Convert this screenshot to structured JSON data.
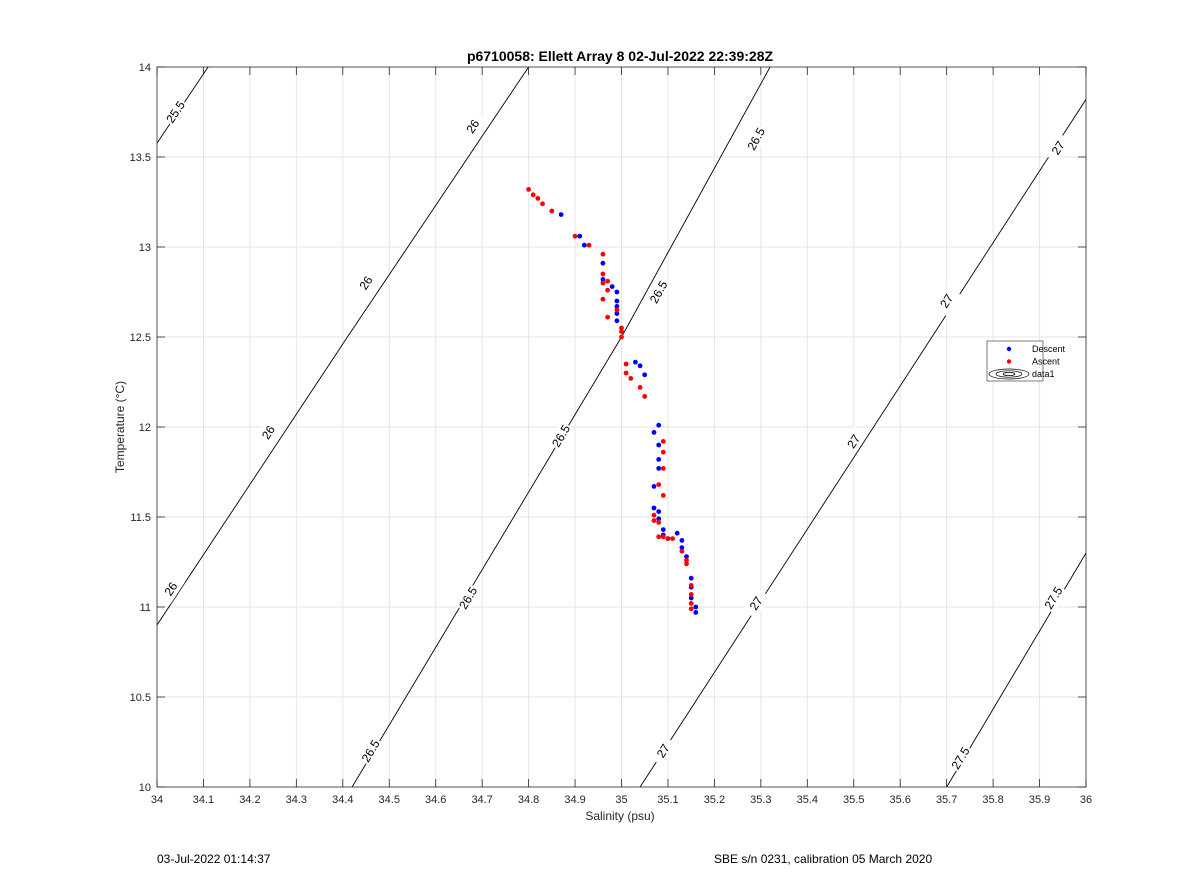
{
  "footer": {
    "timestamp": "03-Jul-2022 01:14:37",
    "sensor_info": "SBE s/n 0231, calibration 05 March 2020"
  },
  "chart_data": {
    "type": "scatter",
    "title": "p6710058: Ellett Array 8 02-Jul-2022 22:39:28Z",
    "xlabel": "Salinity (psu)",
    "ylabel": "Temperature (°C)",
    "xlim": [
      34,
      36
    ],
    "ylim": [
      10,
      14
    ],
    "xticks": [
      34,
      34.1,
      34.2,
      34.3,
      34.4,
      34.5,
      34.6,
      34.7,
      34.8,
      34.9,
      35,
      35.1,
      35.2,
      35.3,
      35.4,
      35.5,
      35.6,
      35.7,
      35.8,
      35.9,
      36
    ],
    "xtick_labels": [
      "34",
      "34.1",
      "34.2",
      "34.3",
      "34.4",
      "34.5",
      "34.6",
      "34.7",
      "34.8",
      "34.9",
      "35",
      "35.1",
      "35.2",
      "35.3",
      "35.4",
      "35.5",
      "35.6",
      "35.7",
      "35.8",
      "35.9",
      "36"
    ],
    "yticks": [
      10,
      10.5,
      11,
      11.5,
      12,
      12.5,
      13,
      13.5,
      14
    ],
    "ytick_labels": [
      "10",
      "10.5",
      "11",
      "11.5",
      "12",
      "12.5",
      "13",
      "13.5",
      "14"
    ],
    "grid": true,
    "legend_position": "right",
    "legend": [
      {
        "name": "Descent",
        "color": "#0000ff",
        "marker": "dot"
      },
      {
        "name": "Ascent",
        "color": "#ff0000",
        "marker": "dot"
      },
      {
        "name": "data1",
        "color": "#000000",
        "marker": "contour"
      }
    ],
    "contours": [
      {
        "level": "25.5",
        "points": [
          [
            33.98,
            13.5
          ],
          [
            34.11,
            14.0
          ]
        ],
        "labels": [
          {
            "x": 34.04,
            "y": 13.75
          }
        ]
      },
      {
        "level": "26",
        "points": [
          [
            34.0,
            10.9
          ],
          [
            34.41,
            12.5
          ],
          [
            34.8,
            14.0
          ]
        ],
        "labels": [
          {
            "x": 34.03,
            "y": 11.1
          },
          {
            "x": 34.24,
            "y": 11.97
          },
          {
            "x": 34.45,
            "y": 12.8
          },
          {
            "x": 34.68,
            "y": 13.67
          }
        ]
      },
      {
        "level": "26.5",
        "points": [
          [
            34.42,
            10.0
          ],
          [
            35.0,
            12.5
          ],
          [
            35.32,
            14.0
          ]
        ],
        "labels": [
          {
            "x": 34.46,
            "y": 10.2
          },
          {
            "x": 34.67,
            "y": 11.05
          },
          {
            "x": 34.87,
            "y": 11.95
          },
          {
            "x": 35.08,
            "y": 12.75
          },
          {
            "x": 35.29,
            "y": 13.6
          }
        ]
      },
      {
        "level": "27",
        "points": [
          [
            35.04,
            10.0
          ],
          [
            36.0,
            13.82
          ]
        ],
        "labels": [
          {
            "x": 35.09,
            "y": 10.2
          },
          {
            "x": 35.29,
            "y": 11.02
          },
          {
            "x": 35.5,
            "y": 11.92
          },
          {
            "x": 35.7,
            "y": 12.7
          },
          {
            "x": 35.94,
            "y": 13.55
          }
        ]
      },
      {
        "level": "27.5",
        "points": [
          [
            35.7,
            10.0
          ],
          [
            36.0,
            11.3
          ]
        ],
        "labels": [
          {
            "x": 35.73,
            "y": 10.16
          },
          {
            "x": 35.93,
            "y": 11.05
          }
        ]
      }
    ],
    "series": [
      {
        "name": "Descent",
        "color": "#0000ff",
        "x": [
          34.87,
          34.91,
          34.92,
          34.96,
          34.96,
          34.98,
          34.99,
          34.99,
          34.99,
          34.99,
          34.99,
          35.03,
          35.04,
          35.05,
          35.08,
          35.07,
          35.08,
          35.08,
          35.08,
          35.07,
          35.07,
          35.08,
          35.08,
          35.09,
          35.09,
          35.1,
          35.12,
          35.13,
          35.13,
          35.14,
          35.15,
          35.15,
          35.15,
          35.16,
          35.16
        ],
        "y": [
          13.18,
          13.06,
          13.01,
          12.91,
          12.82,
          12.78,
          12.75,
          12.7,
          12.67,
          12.63,
          12.59,
          12.36,
          12.34,
          12.29,
          12.01,
          11.97,
          11.9,
          11.82,
          11.77,
          11.67,
          11.55,
          11.53,
          11.49,
          11.43,
          11.4,
          11.38,
          11.41,
          11.37,
          11.33,
          11.28,
          11.16,
          11.11,
          11.05,
          11.0,
          10.97
        ]
      },
      {
        "name": "Ascent",
        "color": "#ff0000",
        "x": [
          34.8,
          34.81,
          34.82,
          34.83,
          34.85,
          34.9,
          34.93,
          34.96,
          34.96,
          34.96,
          34.96,
          34.97,
          34.97,
          34.97,
          34.99,
          35.0,
          35.0,
          35.0,
          35.01,
          35.01,
          35.02,
          35.04,
          35.05,
          35.09,
          35.09,
          35.09,
          35.08,
          35.09,
          35.07,
          35.08,
          35.07,
          35.08,
          35.09,
          35.1,
          35.11,
          35.13,
          35.14,
          35.14,
          35.15,
          35.15,
          35.15,
          35.15
        ],
        "y": [
          13.32,
          13.29,
          13.27,
          13.24,
          13.2,
          13.06,
          13.01,
          12.96,
          12.85,
          12.8,
          12.71,
          12.76,
          12.81,
          12.61,
          12.65,
          12.53,
          12.5,
          12.55,
          12.35,
          12.3,
          12.27,
          12.22,
          12.17,
          11.92,
          11.86,
          11.77,
          11.68,
          11.62,
          11.48,
          11.47,
          11.51,
          11.39,
          11.39,
          11.38,
          11.38,
          11.31,
          11.26,
          11.24,
          11.12,
          11.07,
          11.02,
          10.99
        ]
      }
    ]
  }
}
